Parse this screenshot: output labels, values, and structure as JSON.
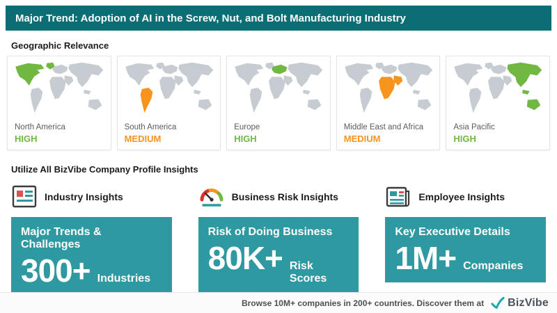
{
  "banner": {
    "title": "Major Trend: Adoption of AI in the Screw, Nut, and Bolt Manufacturing Industry"
  },
  "headings": {
    "geographic": "Geographic Relevance",
    "insights": "Utilize All BizVibe Company Profile Insights"
  },
  "regions": [
    {
      "name": "North America",
      "level": "HIGH",
      "level_color": "#71b843",
      "color": "#71b843",
      "highlight": [
        "northamerica",
        "greenland"
      ]
    },
    {
      "name": "South America",
      "level": "MEDIUM",
      "level_color": "#f7941e",
      "color": "#f7941e",
      "highlight": [
        "southamerica"
      ]
    },
    {
      "name": "Europe",
      "level": "HIGH",
      "level_color": "#71b843",
      "color": "#71b843",
      "highlight": [
        "europe"
      ]
    },
    {
      "name": "Middle East and Africa",
      "level": "MEDIUM",
      "level_color": "#f7941e",
      "color": "#f7941e",
      "highlight": [
        "africa",
        "middleeast"
      ]
    },
    {
      "name": "Asia Pacific",
      "level": "HIGH",
      "level_color": "#71b843",
      "color": "#71b843",
      "highlight": [
        "asia",
        "seasia",
        "australia"
      ]
    }
  ],
  "insights": [
    {
      "title": "Industry Insights",
      "line1": "Major Trends & Challenges",
      "big": "300+",
      "suffix": "Industries",
      "icon": "industry-insights-icon"
    },
    {
      "title": "Business Risk Insights",
      "line1": "Risk of Doing Business",
      "big": "80K+",
      "suffix": "Risk Scores",
      "icon": "risk-gauge-icon"
    },
    {
      "title": "Employee Insights",
      "line1": "Key Executive Details",
      "big": "1M+",
      "suffix": "Companies",
      "icon": "employee-newspaper-icon"
    }
  ],
  "footer": {
    "text": "Browse 10M+ companies in 200+ countries. Discover them at",
    "brand": "BizVibe"
  },
  "colors": {
    "banner": "#0b6e74",
    "box": "#2e99a0",
    "map_base": "#c6ccd2",
    "brand_teal": "#17a9ad"
  }
}
